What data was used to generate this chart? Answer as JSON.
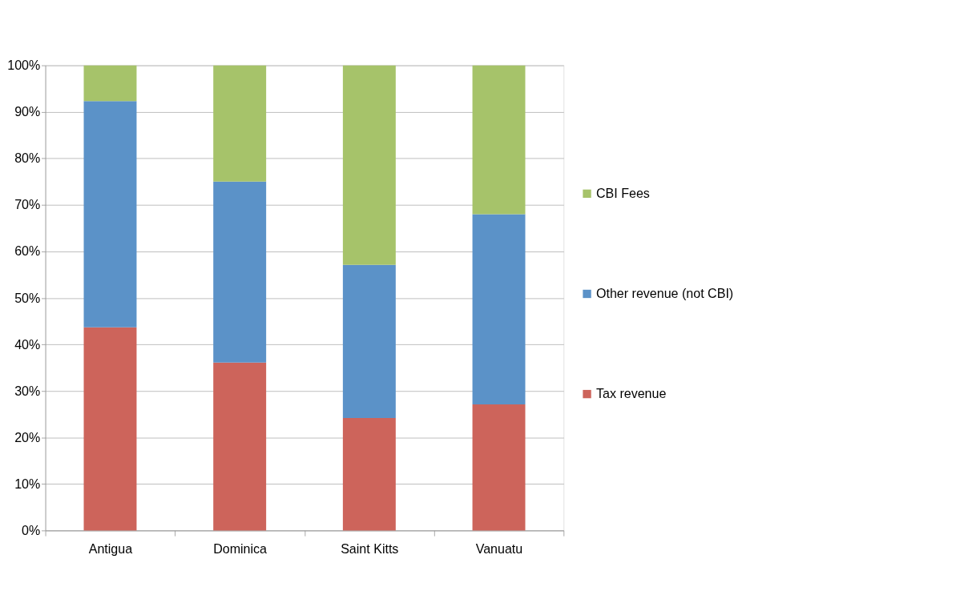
{
  "chart_data": {
    "type": "bar",
    "stacked": true,
    "categories": [
      "Antigua",
      "Dominica",
      "Saint Kitts",
      "Vanuatu"
    ],
    "series": [
      {
        "name": "Tax revenue",
        "color": "#cd645b",
        "values": [
          43.7,
          36.1,
          24.2,
          27.1
        ]
      },
      {
        "name": "Other revenue (not CBI)",
        "color": "#5b92c8",
        "values": [
          48.6,
          38.9,
          32.9,
          40.9
        ]
      },
      {
        "name": "CBI Fees",
        "color": "#a6c36a",
        "values": [
          7.7,
          25.0,
          42.9,
          32.0
        ]
      }
    ],
    "ylim": [
      0,
      100
    ],
    "yticks": [
      {
        "value": 0,
        "label": "0%"
      },
      {
        "value": 10,
        "label": "10%"
      },
      {
        "value": 20,
        "label": "20%"
      },
      {
        "value": 30,
        "label": "30%"
      },
      {
        "value": 40,
        "label": "40%"
      },
      {
        "value": 50,
        "label": "50%"
      },
      {
        "value": 60,
        "label": "60%"
      },
      {
        "value": 70,
        "label": "70%"
      },
      {
        "value": 80,
        "label": "80%"
      },
      {
        "value": 90,
        "label": "90%"
      },
      {
        "value": 100,
        "label": "100%"
      }
    ],
    "grid": "y",
    "legend": "right"
  }
}
